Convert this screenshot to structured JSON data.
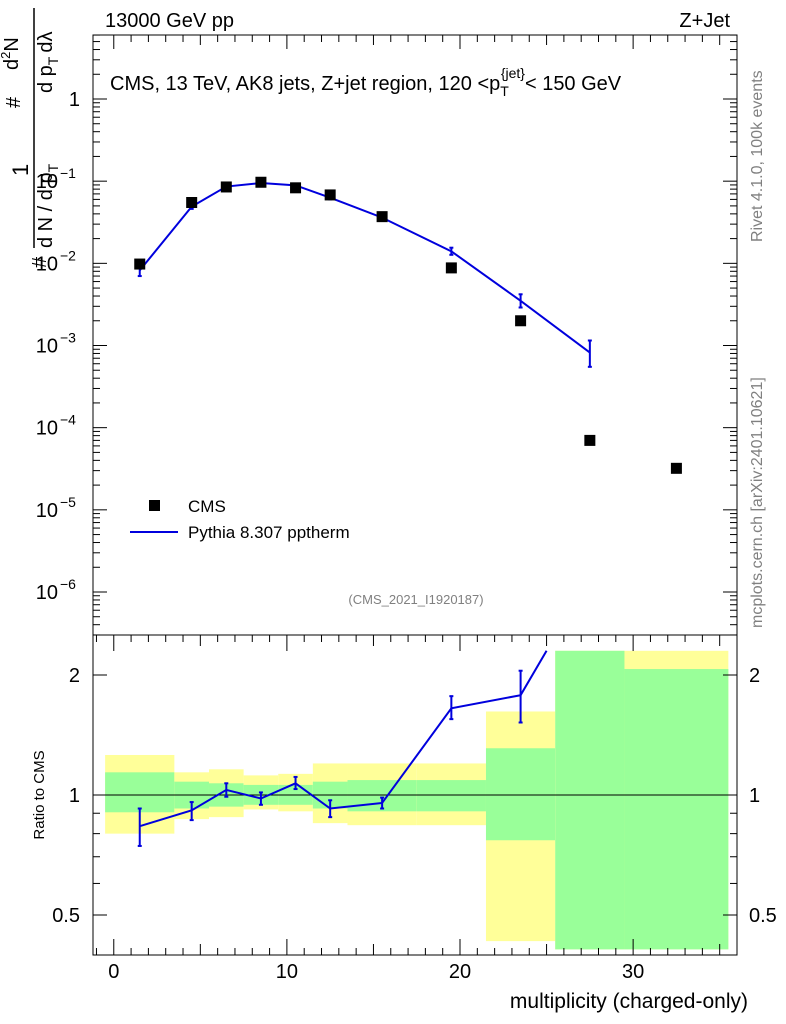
{
  "header": {
    "left": "13000 GeV pp",
    "right": "Z+Jet"
  },
  "side": {
    "rivet": "Rivet 4.1.0,  100k events",
    "mcplots": "mcplots.cern.ch [arXiv:2401.10621]"
  },
  "legend": {
    "data_label": "CMS",
    "mc_label": "Pythia 8.307 pptherm"
  },
  "analysis_id": "(CMS_2021_I1920187)",
  "colors": {
    "mc": "#0000dd",
    "band_stat": "#99ff99",
    "band_total": "#ffff99",
    "data": "#000000"
  },
  "chart_data": [
    {
      "type": "scatter",
      "panel": "main",
      "title": "CMS, 13 TeV, AK8 jets, Z+jet region, 120 <pT{jet}< 150 GeV",
      "title_parts": {
        "before": "CMS, 13 TeV, AK8 jets, Z+jet region, 120 <p",
        "sub": "T",
        "sup": "{jet}",
        "after": "< 150 GeV"
      },
      "ylabel": "1/dN / d pT  d²N / d pT dλ",
      "ylabel_parts": [
        "#",
        "1",
        "d N / d p",
        "T",
        "#",
        "d",
        "2",
        "N",
        "d p",
        "T",
        "d",
        "λ"
      ],
      "yscale": "log",
      "ylim": [
        3e-07,
        10
      ],
      "ytick_labels": [
        {
          "base": "1",
          "exp": ""
        },
        {
          "base": "10",
          "exp": "−1"
        },
        {
          "base": "10",
          "exp": "−2"
        },
        {
          "base": "10",
          "exp": "−3"
        },
        {
          "base": "10",
          "exp": "−4"
        },
        {
          "base": "10",
          "exp": "−5"
        },
        {
          "base": "10",
          "exp": "−6"
        }
      ],
      "ytick_values": [
        1,
        0.1,
        0.01,
        0.001,
        0.0001,
        1e-05,
        1e-06
      ],
      "xlim": [
        -1.2,
        36
      ],
      "series": [
        {
          "name": "CMS",
          "kind": "markers",
          "x": [
            1.5,
            4.5,
            6.5,
            8.5,
            10.5,
            12.5,
            15.5,
            19.5,
            23.5,
            27.5,
            32.5
          ],
          "y": [
            0.0098,
            0.055,
            0.085,
            0.097,
            0.083,
            0.068,
            0.037,
            0.0088,
            0.002,
            7e-05,
            3.2e-05
          ]
        },
        {
          "name": "Pythia 8.307 pptherm",
          "kind": "line",
          "x": [
            1.5,
            4.5,
            6.5,
            8.5,
            10.5,
            12.5,
            15.5,
            19.5,
            23.5,
            27.5
          ],
          "y": [
            0.0082,
            0.049,
            0.086,
            0.095,
            0.089,
            0.063,
            0.036,
            0.014,
            0.0035,
            0.00082
          ],
          "err_lo": [
            0.007,
            0.046,
            0.082,
            0.091,
            0.085,
            0.06,
            0.034,
            0.0127,
            0.0029,
            0.00055
          ],
          "err_hi": [
            0.0095,
            0.052,
            0.09,
            0.099,
            0.093,
            0.066,
            0.038,
            0.0155,
            0.0042,
            0.00115
          ]
        }
      ]
    },
    {
      "type": "line",
      "panel": "ratio",
      "ylabel": "Ratio to CMS",
      "xlabel": "multiplicity (charged-only)",
      "yscale": "log",
      "ylim": [
        0.41,
        2.3
      ],
      "ytick_labels": [
        "2",
        "1",
        "0.5"
      ],
      "ytick_values": [
        2,
        1,
        0.5
      ],
      "xticks": [
        0,
        10,
        20,
        30
      ],
      "xtick_labels": [
        "0",
        "10",
        "20",
        "30"
      ],
      "xlim": [
        -1.2,
        36
      ],
      "bands": [
        {
          "x0": -0.5,
          "x1": 3.5,
          "stat": [
            0.905,
            1.14
          ],
          "total": [
            0.8,
            1.26
          ]
        },
        {
          "x0": 3.5,
          "x1": 5.5,
          "stat": [
            0.925,
            1.08
          ],
          "total": [
            0.87,
            1.14
          ]
        },
        {
          "x0": 5.5,
          "x1": 7.5,
          "stat": [
            0.935,
            1.07
          ],
          "total": [
            0.88,
            1.16
          ]
        },
        {
          "x0": 7.5,
          "x1": 9.5,
          "stat": [
            0.945,
            1.06
          ],
          "total": [
            0.92,
            1.12
          ]
        },
        {
          "x0": 9.5,
          "x1": 11.5,
          "stat": [
            0.945,
            1.06
          ],
          "total": [
            0.91,
            1.13
          ]
        },
        {
          "x0": 11.5,
          "x1": 13.5,
          "stat": [
            0.925,
            1.08
          ],
          "total": [
            0.85,
            1.2
          ]
        },
        {
          "x0": 13.5,
          "x1": 17.5,
          "stat": [
            0.91,
            1.09
          ],
          "total": [
            0.84,
            1.2
          ]
        },
        {
          "x0": 17.5,
          "x1": 21.5,
          "stat": [
            0.91,
            1.09
          ],
          "total": [
            0.84,
            1.2
          ]
        },
        {
          "x0": 21.5,
          "x1": 25.5,
          "stat": [
            0.77,
            1.31
          ],
          "total": [
            0.43,
            1.62
          ]
        },
        {
          "x0": 25.5,
          "x1": 29.5,
          "stat": [
            0.41,
            2.3
          ],
          "total": [
            0.41,
            2.3
          ]
        },
        {
          "x0": 29.5,
          "x1": 35.5,
          "stat": [
            0.41,
            2.07
          ],
          "total": [
            0.41,
            2.3
          ]
        }
      ],
      "series": [
        {
          "name": "Pythia 8.307 pptherm / CMS",
          "x": [
            1.5,
            4.5,
            6.5,
            8.5,
            10.5,
            12.5,
            15.5,
            19.5,
            23.5,
            25.0
          ],
          "y": [
            0.835,
            0.915,
            1.03,
            0.98,
            1.07,
            0.925,
            0.955,
            1.65,
            1.78,
            2.3
          ],
          "err_lo": [
            0.745,
            0.865,
            0.99,
            0.945,
            1.035,
            0.88,
            0.925,
            1.55,
            1.52,
            null
          ],
          "err_hi": [
            0.925,
            0.96,
            1.07,
            1.015,
            1.11,
            0.97,
            0.985,
            1.77,
            2.05,
            null
          ]
        }
      ]
    }
  ]
}
